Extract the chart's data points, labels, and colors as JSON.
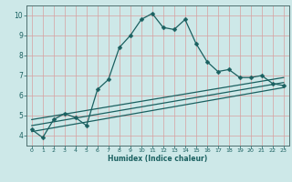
{
  "xlabel": "Humidex (Indice chaleur)",
  "bg_color": "#cde8e8",
  "line_color": "#1a6060",
  "grid_color": "#d8a0a0",
  "spine_color": "#507070",
  "xlim": [
    -0.5,
    23.5
  ],
  "ylim": [
    3.5,
    10.5
  ],
  "xticks": [
    0,
    1,
    2,
    3,
    4,
    5,
    6,
    7,
    8,
    9,
    10,
    11,
    12,
    13,
    14,
    15,
    16,
    17,
    18,
    19,
    20,
    21,
    22,
    23
  ],
  "yticks": [
    4,
    5,
    6,
    7,
    8,
    9,
    10
  ],
  "series_main": {
    "x": [
      0,
      1,
      2,
      3,
      4,
      5,
      6,
      7,
      8,
      9,
      10,
      11,
      12,
      13,
      14,
      15,
      16,
      17,
      18,
      19,
      20,
      21,
      22,
      23
    ],
    "y": [
      4.3,
      3.9,
      4.8,
      5.1,
      4.9,
      4.5,
      6.3,
      6.8,
      8.4,
      9.0,
      9.8,
      10.1,
      9.4,
      9.3,
      9.8,
      8.6,
      7.7,
      7.2,
      7.3,
      6.9,
      6.9,
      7.0,
      6.6,
      6.5
    ]
  },
  "trend_lines": [
    {
      "x": [
        0,
        23
      ],
      "y": [
        4.2,
        6.4
      ]
    },
    {
      "x": [
        0,
        23
      ],
      "y": [
        4.5,
        6.65
      ]
    },
    {
      "x": [
        0,
        23
      ],
      "y": [
        4.8,
        6.9
      ]
    }
  ],
  "marker": "D",
  "marker_size": 2.5,
  "line_width": 0.9
}
